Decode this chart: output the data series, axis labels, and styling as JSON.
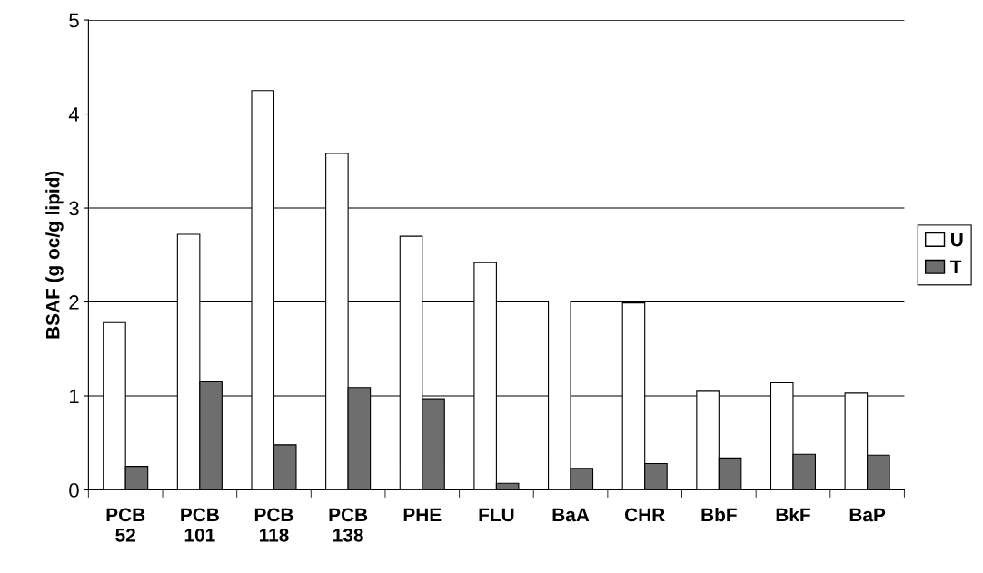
{
  "chart_data": {
    "type": "bar",
    "ylabel": "BSAF (g oc/g lipid)",
    "categories": [
      "PCB\n52",
      "PCB\n101",
      "PCB\n118",
      "PCB\n138",
      "PHE",
      "FLU",
      "BaA",
      "CHR",
      "BbF",
      "BkF",
      "BaP"
    ],
    "series": [
      {
        "name": "U",
        "color": "#ffffff",
        "values": [
          1.78,
          2.72,
          4.25,
          3.58,
          2.7,
          2.42,
          2.01,
          1.99,
          1.05,
          1.14,
          1.03
        ]
      },
      {
        "name": "T",
        "color": "#6e6e6e",
        "values": [
          0.25,
          1.15,
          0.48,
          1.09,
          0.97,
          0.07,
          0.23,
          0.28,
          0.34,
          0.38,
          0.37
        ]
      }
    ],
    "ylim": [
      0,
      5
    ],
    "yticks": [
      0,
      1,
      2,
      3,
      4,
      5
    ],
    "grid": "y",
    "legend": "right"
  }
}
